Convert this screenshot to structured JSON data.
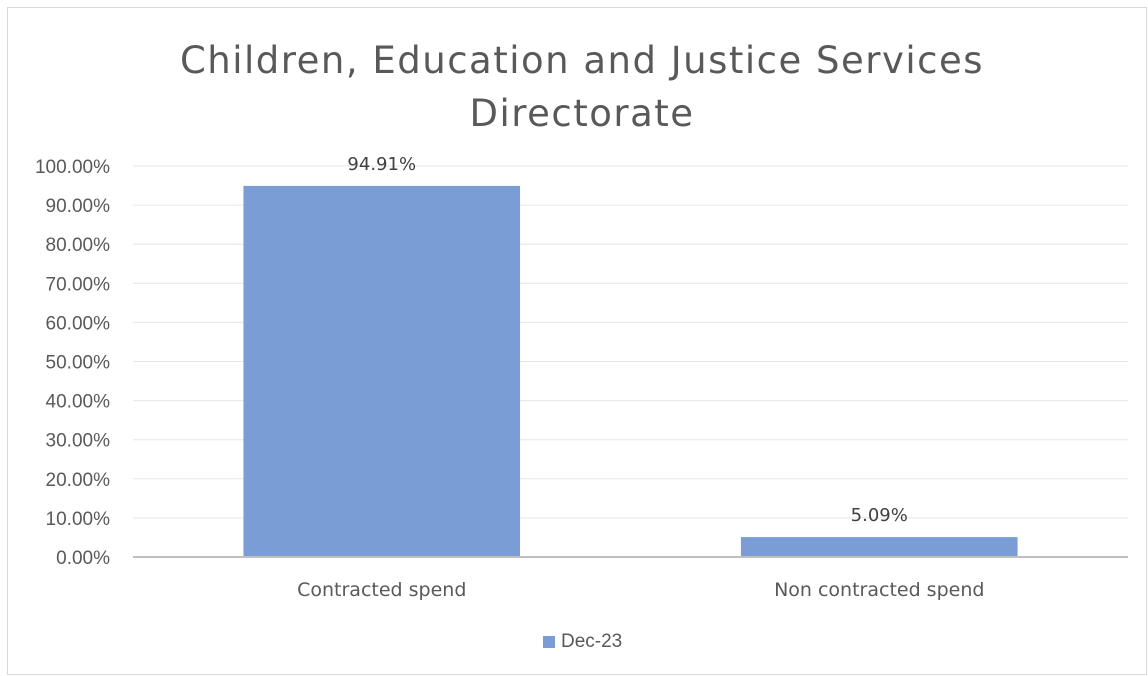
{
  "chart_data": {
    "type": "bar",
    "title": "Children, Education and Justice Services Directorate",
    "title_lines": [
      "Children, Education and Justice Services",
      "Directorate"
    ],
    "categories": [
      "Contracted spend",
      "Non contracted spend"
    ],
    "series": [
      {
        "name": "Dec-23",
        "values": [
          94.91,
          5.09
        ],
        "color": "#7a9dd5"
      }
    ],
    "data_labels": [
      "94.91%",
      "5.09%"
    ],
    "y_ticks": [
      "0.00%",
      "10.00%",
      "20.00%",
      "30.00%",
      "40.00%",
      "50.00%",
      "60.00%",
      "70.00%",
      "80.00%",
      "90.00%",
      "100.00%"
    ],
    "ylim": [
      0,
      100
    ],
    "xlabel": "",
    "ylabel": "",
    "grid": true,
    "legend_position": "bottom"
  }
}
